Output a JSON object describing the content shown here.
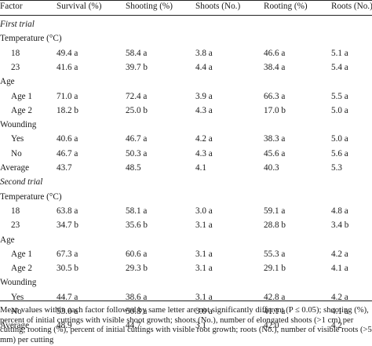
{
  "columns": [
    "Factor",
    "Survival (%)",
    "Shooting (%)",
    "Shoots (No.)",
    "Rooting (%)",
    "Roots (No.)"
  ],
  "rows": [
    {
      "type": "section",
      "label": "First trial"
    },
    {
      "type": "factor",
      "label": "Temperature (°C)"
    },
    {
      "type": "level",
      "cells": [
        "18",
        "49.4 a",
        "58.4 a",
        "3.8 a",
        "46.6 a",
        "5.1 a"
      ]
    },
    {
      "type": "level",
      "cells": [
        "23",
        "41.6 a",
        "39.7 b",
        "4.4 a",
        "38.4 a",
        "5.4 a"
      ]
    },
    {
      "type": "factor",
      "label": "Age"
    },
    {
      "type": "level",
      "cells": [
        "Age 1",
        "71.0 a",
        "72.4 a",
        "3.9 a",
        "66.3 a",
        "5.5 a"
      ]
    },
    {
      "type": "level",
      "cells": [
        "Age 2",
        "18.2 b",
        "25.0 b",
        "4.3 a",
        "17.0 b",
        "5.0 a"
      ]
    },
    {
      "type": "factor",
      "label": "Wounding"
    },
    {
      "type": "level",
      "cells": [
        "Yes",
        "40.6 a",
        "46.7 a",
        "4.2 a",
        "38.3 a",
        "5.0 a"
      ]
    },
    {
      "type": "level",
      "cells": [
        "No",
        "46.7 a",
        "50.3 a",
        "4.3 a",
        "45.6 a",
        "5.6 a"
      ]
    },
    {
      "type": "average",
      "cells": [
        "Average",
        "43.7",
        "48.5",
        "4.1",
        "40.3",
        "5.3"
      ]
    },
    {
      "type": "section",
      "label": "Second trial"
    },
    {
      "type": "factor",
      "label": "Temperature (°C)"
    },
    {
      "type": "level",
      "cells": [
        "18",
        "63.8 a",
        "58.1 a",
        "3.0 a",
        "59.1 a",
        "4.8 a"
      ]
    },
    {
      "type": "level",
      "cells": [
        "23",
        "34.7 b",
        "35.6 b",
        "3.1 a",
        "28.8 b",
        "3.4 b"
      ]
    },
    {
      "type": "factor",
      "label": "Age"
    },
    {
      "type": "level",
      "cells": [
        "Age 1",
        "67.3 a",
        "60.6 a",
        "3.1 a",
        "55.3 a",
        "4.2 a"
      ]
    },
    {
      "type": "level",
      "cells": [
        "Age 2",
        "30.5 b",
        "29.3 b",
        "3.1 a",
        "29.1 b",
        "4.1 a"
      ]
    },
    {
      "type": "factor",
      "label": "Wounding"
    },
    {
      "type": "level",
      "cells": [
        "Yes",
        "44.7 a",
        "38.6 a",
        "3.1 a",
        "42.8 a",
        "4.2 a"
      ]
    },
    {
      "type": "level",
      "cells": [
        "No",
        "53.0 a",
        "50.8 a",
        "3.0 a",
        "41.1 a",
        "4.1 a"
      ]
    },
    {
      "type": "average",
      "cells": [
        "Average",
        "48.9",
        "44.7",
        "3.1",
        "42.0",
        "4.2"
      ]
    }
  ],
  "footnote": "Mean values within each factor followed by same letter are not significantly different (P ≤ 0.05); shooting (%), percent of initial cuttings with visible shoot growth; shoots (No.), number of elongated shoots (>1 cm) per cutting; rooting (%), percent of initial cuttings with visible root growth; roots (No.), number of visible roots (>5 mm) per cutting"
}
